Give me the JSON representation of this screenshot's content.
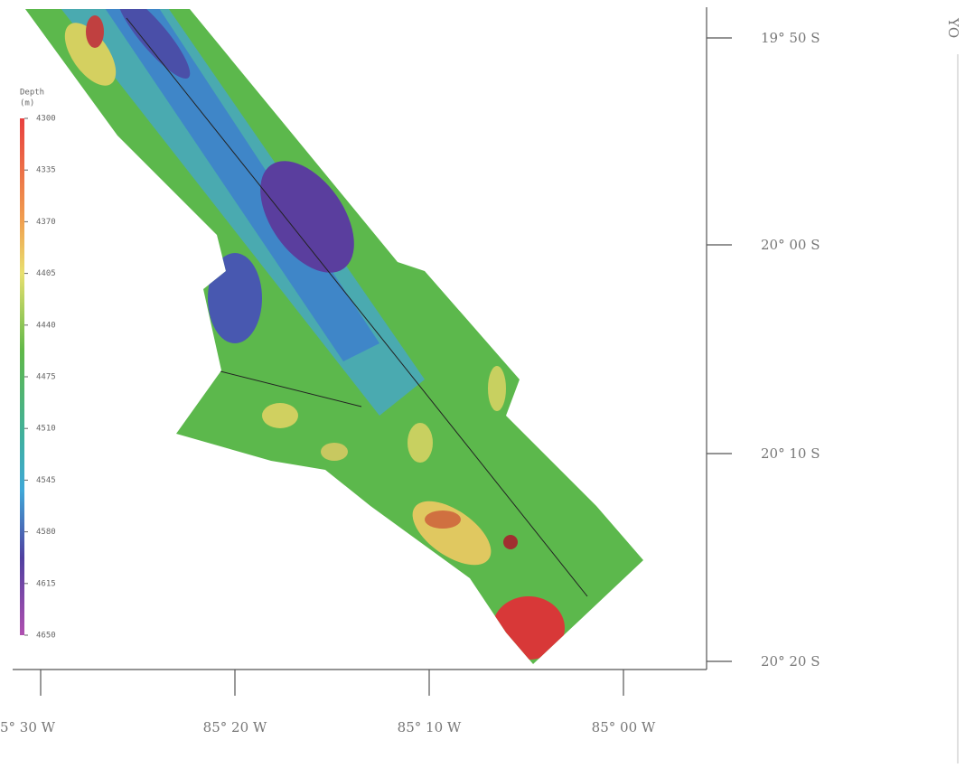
{
  "map": {
    "colorbar": {
      "title": "Depth",
      "unit": "(m)",
      "ticks": [
        4300,
        4335,
        4370,
        4405,
        4440,
        4475,
        4510,
        4545,
        4580,
        4615,
        4650
      ]
    },
    "lat_labels": [
      "19° 50 S",
      "20° 00 S",
      "20° 10 S",
      "20° 20 S"
    ],
    "lon_labels": [
      "5° 30 W",
      "85° 20 W",
      "85° 10 W",
      "85° 00 W"
    ],
    "corner_label": "YO"
  }
}
